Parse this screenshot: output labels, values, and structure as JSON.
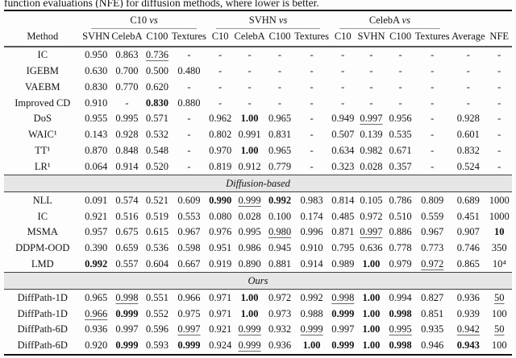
{
  "caption": "function evaluations (NFE) for diffusion methods, where lower is better.",
  "table": {
    "col_groups": [
      {
        "name": "C10",
        "vs": "vs",
        "span": 4
      },
      {
        "name": "SVHN",
        "vs": "vs",
        "span": 4
      },
      {
        "name": "CelebA",
        "vs": "vs",
        "span": 4
      }
    ],
    "columns": [
      "Method",
      "SVHN",
      "CelebA",
      "C100",
      "Textures",
      "C10",
      "CelebA",
      "C100",
      "Textures",
      "C10",
      "SVHN",
      "C100",
      "Textures",
      "Average",
      "NFE"
    ],
    "sections": [
      {
        "label": "",
        "rows": [
          {
            "method": "IC",
            "cells": [
              "0.950",
              "0.863",
              "u:0.736",
              "-",
              "-",
              "-",
              "-",
              "-",
              "-",
              "-",
              "-",
              "-",
              "-",
              "-"
            ]
          },
          {
            "method": "IGEBM",
            "cells": [
              "0.630",
              "0.700",
              "0.500",
              "0.480",
              "-",
              "-",
              "-",
              "-",
              "-",
              "-",
              "-",
              "-",
              "-",
              "-"
            ]
          },
          {
            "method": "VAEBM",
            "cells": [
              "0.830",
              "0.770",
              "0.620",
              "-",
              "-",
              "-",
              "-",
              "-",
              "-",
              "-",
              "-",
              "-",
              "-",
              "-"
            ]
          },
          {
            "method": "Improved CD",
            "cells": [
              "0.910",
              "-",
              "b:0.830",
              "0.880",
              "-",
              "-",
              "-",
              "-",
              "-",
              "-",
              "-",
              "-",
              "-",
              "-"
            ]
          },
          {
            "method": "DoS",
            "cells": [
              "0.955",
              "0.995",
              "0.571",
              "-",
              "0.962",
              "b:1.00",
              "0.965",
              "-",
              "0.949",
              "u:0.997",
              "0.956",
              "-",
              "0.928",
              "-"
            ]
          },
          {
            "method": "WAIC¹",
            "cells": [
              "0.143",
              "0.928",
              "0.532",
              "-",
              "0.802",
              "0.991",
              "0.831",
              "-",
              "0.507",
              "0.139",
              "0.535",
              "-",
              "0.601",
              "-"
            ]
          },
          {
            "method": "TT¹",
            "cells": [
              "0.870",
              "0.848",
              "0.548",
              "-",
              "0.970",
              "b:1.00",
              "0.965",
              "-",
              "0.634",
              "0.982",
              "0.671",
              "-",
              "0.832",
              "-"
            ]
          },
          {
            "method": "LR¹",
            "cells": [
              "0.064",
              "0.914",
              "0.520",
              "-",
              "0.819",
              "0.912",
              "0.779",
              "-",
              "0.323",
              "0.028",
              "0.357",
              "-",
              "0.524",
              "-"
            ]
          }
        ]
      },
      {
        "label": "Diffusion-based",
        "rows": [
          {
            "method": "NLL",
            "cells": [
              "0.091",
              "0.574",
              "0.521",
              "0.609",
              "b:0.990",
              "u:0.999",
              "b:0.992",
              "0.983",
              "0.814",
              "0.105",
              "0.786",
              "0.809",
              "0.689",
              "1000"
            ]
          },
          {
            "method": "IC",
            "cells": [
              "0.921",
              "0.516",
              "0.519",
              "0.553",
              "0.080",
              "0.028",
              "0.100",
              "0.174",
              "0.485",
              "0.972",
              "0.510",
              "0.559",
              "0.451",
              "1000"
            ]
          },
          {
            "method": "MSMA",
            "cells": [
              "0.957",
              "0.675",
              "0.615",
              "0.967",
              "0.976",
              "0.995",
              "u:0.980",
              "0.996",
              "0.871",
              "u:0.997",
              "0.886",
              "0.967",
              "0.907",
              "b:10"
            ]
          },
          {
            "method": "DDPM-OOD",
            "cells": [
              "0.390",
              "0.659",
              "0.536",
              "0.598",
              "0.951",
              "0.986",
              "0.945",
              "0.910",
              "0.795",
              "0.636",
              "0.778",
              "0.773",
              "0.746",
              "350"
            ]
          },
          {
            "method": "LMD",
            "cells": [
              "b:0.992",
              "0.557",
              "0.604",
              "0.667",
              "0.919",
              "0.890",
              "0.881",
              "0.914",
              "0.989",
              "b:1.00",
              "0.979",
              "u:0.972",
              "0.865",
              "10⁴"
            ]
          }
        ]
      },
      {
        "label": "Ours",
        "rows": [
          {
            "method": "DiffPath-1D",
            "cells": [
              "0.965",
              "u:0.998",
              "0.551",
              "0.966",
              "0.971",
              "b:1.00",
              "0.972",
              "0.992",
              "u:0.998",
              "b:1.00",
              "0.994",
              "0.827",
              "0.936",
              "u:50"
            ]
          },
          {
            "method": "DiffPath-1D",
            "cells": [
              "u:0.966",
              "b:0.999",
              "0.552",
              "0.975",
              "0.971",
              "b:1.00",
              "0.973",
              "0.988",
              "b:0.999",
              "b:1.00",
              "b:0.998",
              "0.851",
              "0.939",
              "100"
            ]
          },
          {
            "method": "DiffPath-6D",
            "cells": [
              "0.936",
              "0.997",
              "0.596",
              "u:0.997",
              "0.921",
              "u:0.999",
              "0.932",
              "u:0.999",
              "0.997",
              "b:1.00",
              "u:0.995",
              "0.935",
              "u:0.942",
              "u:50"
            ]
          },
          {
            "method": "DiffPath-6D",
            "cells": [
              "0.920",
              "b:0.999",
              "0.593",
              "b:0.999",
              "0.924",
              "u:0.999",
              "0.936",
              "b:1.00",
              "b:0.999",
              "b:1.00",
              "b:0.998",
              "0.946",
              "b:0.943",
              "100"
            ]
          }
        ]
      }
    ]
  },
  "colors": {
    "rule_heavy": "#101010",
    "rule_header": "#57575a",
    "rule_cmid": "#9a9a9a",
    "band_bg": "#e6e6e6",
    "text": "#151515"
  }
}
